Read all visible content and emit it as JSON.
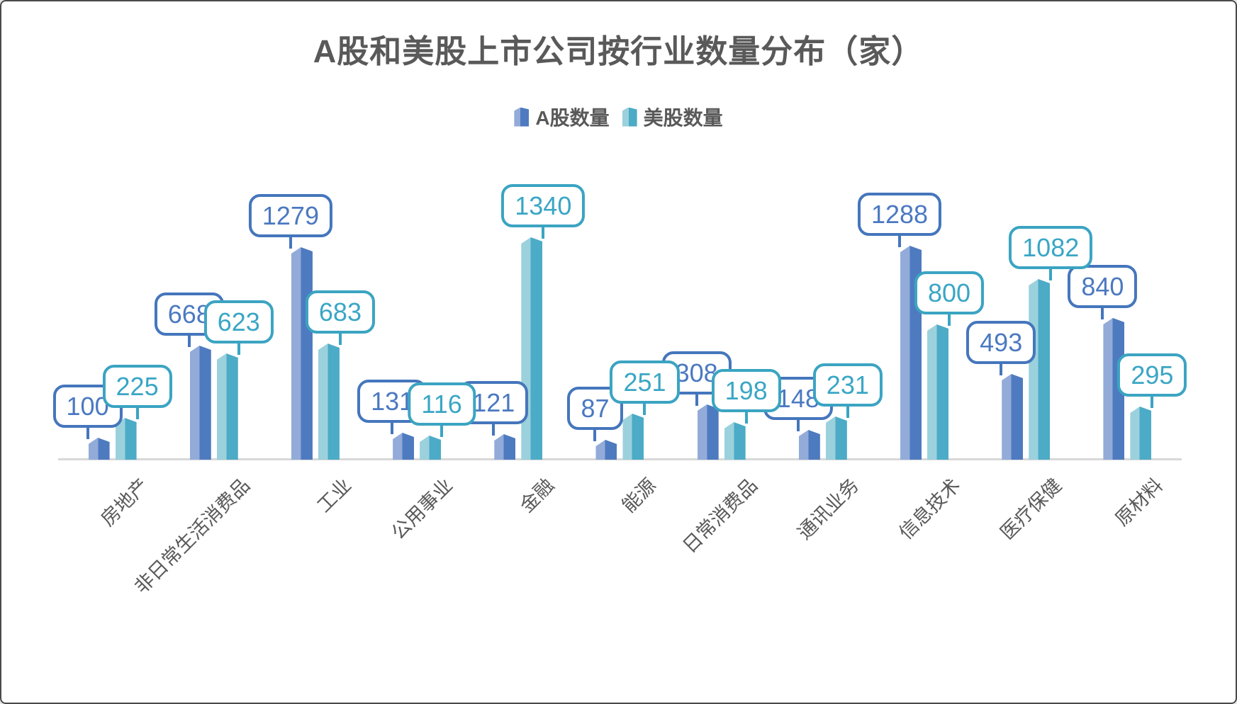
{
  "chart_data": {
    "type": "bar",
    "title": "A股和美股上市公司按行业数量分布（家）",
    "legend_position": "top-center",
    "grid": false,
    "y_axis_visible": false,
    "x_axis_label_rotation_deg": -45,
    "data_label_style": "callout-box",
    "text_color": "#595959",
    "axis_line_color": "#d8d8d8",
    "background_color": "#ffffff",
    "categories": [
      "房地产",
      "非日常生活消费品",
      "工业",
      "公用事业",
      "金融",
      "能源",
      "日常消费品",
      "通讯业务",
      "信息技术",
      "医疗保健",
      "原材料"
    ],
    "series": [
      {
        "name": "A股数量",
        "values": [
          100,
          668,
          1279,
          131,
          121,
          87,
          308,
          148,
          1288,
          493,
          840
        ],
        "color_light": "#92abd9",
        "color_dark": "#4e7ac0",
        "label_text_color": "#4b79c1",
        "label_border_color": "#4576bc"
      },
      {
        "name": "美股数量",
        "values": [
          225,
          623,
          683,
          116,
          1340,
          251,
          198,
          231,
          800,
          1082,
          295
        ],
        "color_light": "#9bd1dd",
        "color_dark": "#4cabc6",
        "label_text_color": "#3aa6c5",
        "label_border_color": "#3ba4c2"
      }
    ]
  }
}
